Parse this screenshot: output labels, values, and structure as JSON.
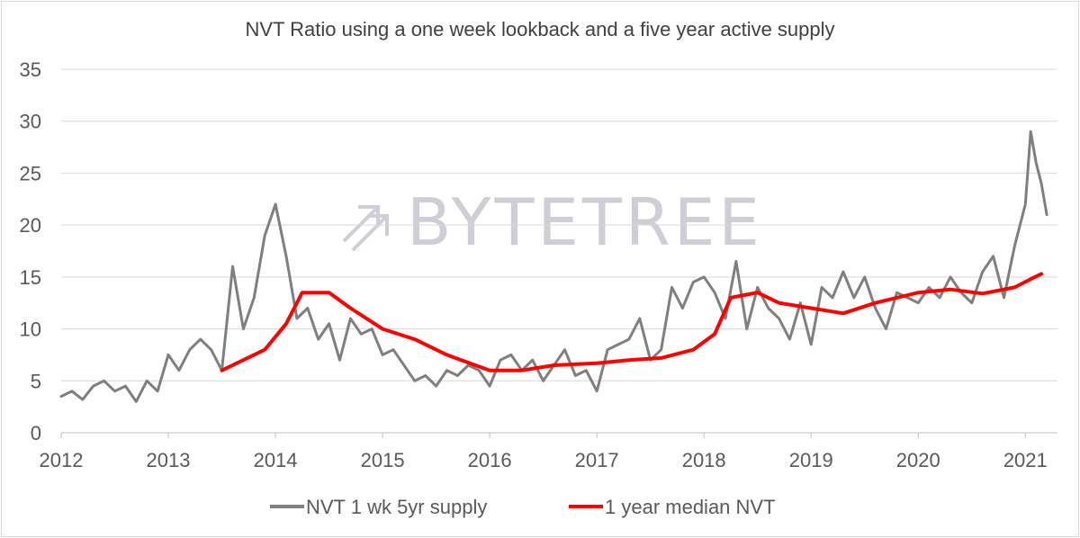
{
  "chart_data": {
    "type": "line",
    "title": "NVT Ratio using a one week lookback and a five year active supply",
    "xlabel": "",
    "ylabel": "",
    "xlim": [
      2012,
      2021.3
    ],
    "ylim": [
      0,
      35
    ],
    "y_ticks": [
      "0",
      "5",
      "10",
      "15",
      "20",
      "25",
      "30",
      "35"
    ],
    "x_ticks": [
      "2012",
      "2013",
      "2014",
      "2015",
      "2016",
      "2017",
      "2018",
      "2019",
      "2020",
      "2021"
    ],
    "grid": "horizontal",
    "legend_position": "bottom",
    "watermark": "BYTETREE",
    "series": [
      {
        "name": "NVT 1 wk 5yr supply",
        "color": "#7f7f7f",
        "x": [
          2012.0,
          2012.1,
          2012.2,
          2012.3,
          2012.4,
          2012.5,
          2012.6,
          2012.7,
          2012.8,
          2012.9,
          2013.0,
          2013.1,
          2013.2,
          2013.3,
          2013.4,
          2013.5,
          2013.6,
          2013.7,
          2013.8,
          2013.9,
          2014.0,
          2014.1,
          2014.2,
          2014.3,
          2014.4,
          2014.5,
          2014.6,
          2014.7,
          2014.8,
          2014.9,
          2015.0,
          2015.1,
          2015.2,
          2015.3,
          2015.4,
          2015.5,
          2015.6,
          2015.7,
          2015.8,
          2015.9,
          2016.0,
          2016.1,
          2016.2,
          2016.3,
          2016.4,
          2016.5,
          2016.6,
          2016.7,
          2016.8,
          2016.9,
          2017.0,
          2017.1,
          2017.2,
          2017.3,
          2017.4,
          2017.5,
          2017.6,
          2017.7,
          2017.8,
          2017.9,
          2018.0,
          2018.1,
          2018.2,
          2018.3,
          2018.4,
          2018.5,
          2018.6,
          2018.7,
          2018.8,
          2018.9,
          2019.0,
          2019.1,
          2019.2,
          2019.3,
          2019.4,
          2019.5,
          2019.6,
          2019.7,
          2019.8,
          2019.9,
          2020.0,
          2020.1,
          2020.2,
          2020.3,
          2020.4,
          2020.5,
          2020.6,
          2020.7,
          2020.8,
          2020.9,
          2021.0,
          2021.05,
          2021.1,
          2021.15,
          2021.2
        ],
        "y": [
          3.5,
          4.0,
          3.2,
          4.5,
          5.0,
          4.0,
          4.5,
          3.0,
          5.0,
          4.0,
          7.5,
          6.0,
          8.0,
          9.0,
          8.0,
          6.0,
          16.0,
          10.0,
          13.0,
          19.0,
          22.0,
          17.0,
          11.0,
          12.0,
          9.0,
          10.5,
          7.0,
          11.0,
          9.5,
          10.0,
          7.5,
          8.0,
          6.5,
          5.0,
          5.5,
          4.5,
          6.0,
          5.5,
          6.5,
          6.0,
          4.5,
          7.0,
          7.5,
          6.0,
          7.0,
          5.0,
          6.5,
          8.0,
          5.5,
          6.0,
          4.0,
          8.0,
          8.5,
          9.0,
          11.0,
          7.0,
          8.0,
          14.0,
          12.0,
          14.5,
          15.0,
          13.5,
          11.0,
          16.5,
          10.0,
          14.0,
          12.0,
          11.0,
          9.0,
          12.5,
          8.5,
          14.0,
          13.0,
          15.5,
          13.0,
          15.0,
          12.0,
          10.0,
          13.5,
          13.0,
          12.5,
          14.0,
          13.0,
          15.0,
          13.5,
          12.5,
          15.5,
          17.0,
          13.0,
          18.0,
          22.0,
          29.0,
          26.0,
          24.0,
          21.0
        ]
      },
      {
        "name": "1 year median NVT",
        "color": "#ff0000",
        "x": [
          2013.5,
          2013.7,
          2013.9,
          2014.1,
          2014.25,
          2014.5,
          2014.7,
          2015.0,
          2015.3,
          2015.6,
          2016.0,
          2016.3,
          2016.6,
          2017.0,
          2017.3,
          2017.6,
          2017.9,
          2018.1,
          2018.25,
          2018.5,
          2018.7,
          2019.0,
          2019.3,
          2019.6,
          2020.0,
          2020.3,
          2020.6,
          2020.9,
          2021.05,
          2021.15
        ],
        "y": [
          6.0,
          7.0,
          8.0,
          10.5,
          13.5,
          13.5,
          12.0,
          10.0,
          9.0,
          7.5,
          6.0,
          6.0,
          6.5,
          6.7,
          7.0,
          7.2,
          8.0,
          9.5,
          13.0,
          13.5,
          12.5,
          12.0,
          11.5,
          12.5,
          13.5,
          13.8,
          13.4,
          14.0,
          14.8,
          15.3
        ]
      }
    ]
  }
}
